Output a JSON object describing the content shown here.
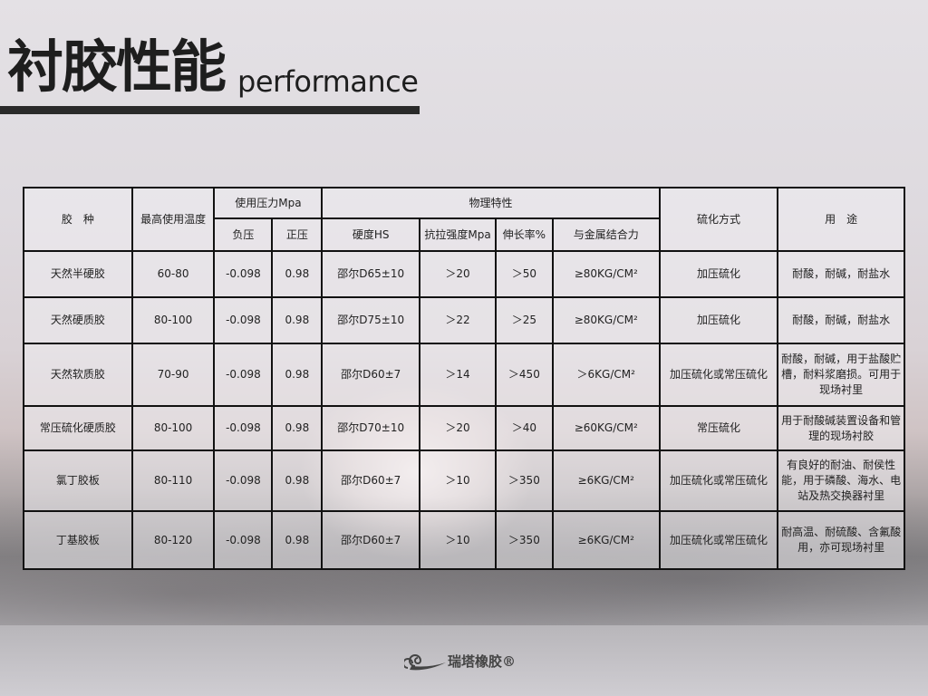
{
  "title": {
    "cn": "衬胶性能",
    "en": "performance"
  },
  "table": {
    "headers": {
      "type": "胶　种",
      "max_temp": "最高使用温度",
      "pressure": "使用压力Mpa",
      "negative": "负压",
      "positive": "正压",
      "physical": "物理特性",
      "hardness": "硬度HS",
      "tensile": "抗拉强度Mpa",
      "elongation": "伸长率%",
      "adhesion": "与金属结合力",
      "vulcanization": "硫化方式",
      "usage": "用　途"
    },
    "rows": [
      {
        "type": "天然半硬胶",
        "max_temp": "60-80",
        "negative": "-0.098",
        "positive": "0.98",
        "hardness": "邵尔D65±10",
        "tensile": "＞20",
        "elongation": "＞50",
        "adhesion": "≥80KG/CM²",
        "vulcanization": "加压硫化",
        "usage": "耐酸，耐碱，耐盐水"
      },
      {
        "type": "天然硬质胶",
        "max_temp": "80-100",
        "negative": "-0.098",
        "positive": "0.98",
        "hardness": "邵尔D75±10",
        "tensile": "＞22",
        "elongation": "＞25",
        "adhesion": "≥80KG/CM²",
        "vulcanization": "加压硫化",
        "usage": "耐酸，耐碱，耐盐水"
      },
      {
        "type": "天然软质胶",
        "max_temp": "70-90",
        "negative": "-0.098",
        "positive": "0.98",
        "hardness": "邵尔D60±7",
        "tensile": "＞14",
        "elongation": "＞450",
        "adhesion": "＞6KG/CM²",
        "vulcanization": "加压硫化或常压硫化",
        "usage": "耐酸，耐碱，用于盐酸贮槽，耐料浆磨损。可用于现场衬里"
      },
      {
        "type": "常压硫化硬质胶",
        "max_temp": "80-100",
        "negative": "-0.098",
        "positive": "0.98",
        "hardness": "邵尔D70±10",
        "tensile": "＞20",
        "elongation": "＞40",
        "adhesion": "≥60KG/CM²",
        "vulcanization": "常压硫化",
        "usage": "用于耐酸碱装置设备和管理的现场衬胶"
      },
      {
        "type": "氯丁胶板",
        "max_temp": "80-110",
        "negative": "-0.098",
        "positive": "0.98",
        "hardness": "邵尔D60±7",
        "tensile": "＞10",
        "elongation": "＞350",
        "adhesion": "≥6KG/CM²",
        "vulcanization": "加压硫化或常压硫化",
        "usage": "有良好的耐油、耐侯性能，用于磷酸、海水、电站及热交换器衬里"
      },
      {
        "type": "丁基胶板",
        "max_temp": "80-120",
        "negative": "-0.098",
        "positive": "0.98",
        "hardness": "邵尔D60±7",
        "tensile": "＞10",
        "elongation": "＞350",
        "adhesion": "≥6KG/CM²",
        "vulcanization": "加压硫化或常压硫化",
        "usage": "耐高温、耐硫酸、含氟酸用，亦可现场衬里"
      }
    ]
  },
  "logo": {
    "text": "瑞塔橡胶®"
  }
}
